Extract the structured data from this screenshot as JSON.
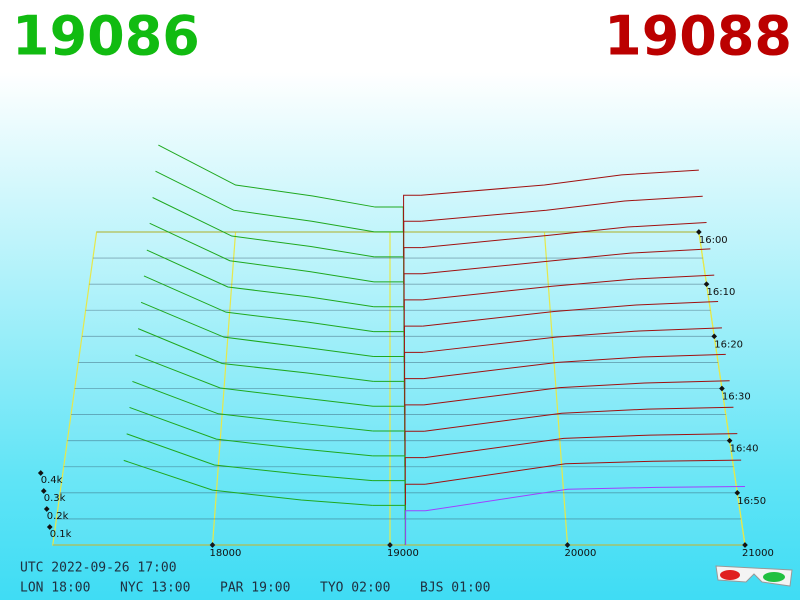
{
  "chart_data": {
    "type": "depth3d",
    "bid": 19086,
    "ask": 19088,
    "bid_color": "#11bb11",
    "ask_color": "#bb0000",
    "bid_line_color": "#1fa81f",
    "ask_line_color": "#a01010",
    "grid_color": "#e6e84a",
    "xlim": [
      17100,
      21000
    ],
    "xticks": [
      18000,
      19000,
      20000,
      21000
    ],
    "zticks": [
      {
        "value": 100,
        "label": "0.1k"
      },
      {
        "value": 200,
        "label": "0.2k"
      },
      {
        "value": 300,
        "label": "0.3k"
      },
      {
        "value": 400,
        "label": "0.4k"
      }
    ],
    "time_ticks": [
      "16:00",
      "16:10",
      "16:20",
      "16:30",
      "16:40",
      "16:50"
    ],
    "bid_prices": [
      17500,
      18000,
      18500,
      18900
    ],
    "ask_prices": [
      19200,
      20000,
      20500,
      21000
    ],
    "snapshots": [
      {
        "bids": [
          555,
          300,
          230,
          160
        ],
        "asks": [
          235,
          300,
          365,
          395
        ]
      },
      {
        "bids": [
          548,
          302,
          232,
          165
        ],
        "asks": [
          232,
          302,
          360,
          390
        ]
      },
      {
        "bids": [
          540,
          300,
          235,
          170
        ],
        "asks": [
          228,
          304,
          356,
          384
        ]
      },
      {
        "bids": [
          535,
          305,
          238,
          175
        ],
        "asks": [
          225,
          303,
          352,
          378
        ]
      },
      {
        "bids": [
          525,
          300,
          240,
          180
        ],
        "asks": [
          222,
          305,
          348,
          372
        ]
      },
      {
        "bids": [
          520,
          302,
          242,
          185
        ],
        "asks": [
          218,
          306,
          345,
          366
        ]
      },
      {
        "bids": [
          512,
          305,
          243,
          190
        ],
        "asks": [
          215,
          305,
          342,
          360
        ]
      },
      {
        "bids": [
          505,
          300,
          245,
          195
        ],
        "asks": [
          211,
          307,
          338,
          354
        ]
      },
      {
        "bids": [
          498,
          306,
          246,
          200
        ],
        "asks": [
          208,
          308,
          335,
          348
        ]
      },
      {
        "bids": [
          490,
          304,
          248,
          205
        ],
        "asks": [
          204,
          307,
          331,
          342
        ]
      },
      {
        "bids": [
          485,
          305,
          248,
          210
        ],
        "asks": [
          200,
          309,
          328,
          336
        ]
      },
      {
        "bids": [
          478,
          303,
          250,
          215
        ],
        "asks": [
          195,
          310,
          324,
          330
        ]
      },
      {
        "bids": [
          470,
          305,
          250,
          220
        ],
        "asks": [
          190,
          310,
          320,
          325
        ]
      }
    ],
    "footer": {
      "utc": "UTC 2022-09-26 17:00",
      "cities": [
        "LON 18:00",
        "NYC 13:00",
        "PAR 19:00",
        "TYO 02:00",
        "BJS 01:00"
      ]
    }
  }
}
